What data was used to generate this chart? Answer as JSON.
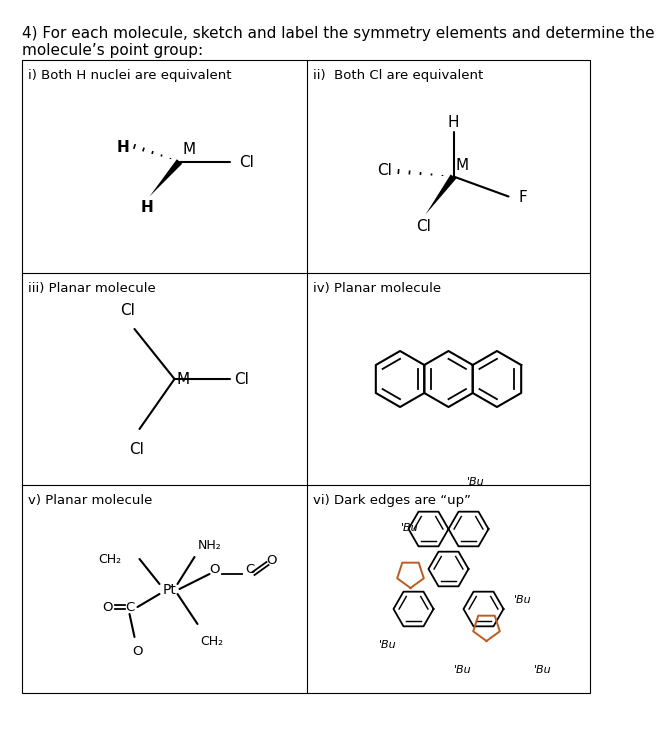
{
  "title_line1": "4) For each molecule, sketch and label the symmetry elements and determine the",
  "title_line2": "molecule’s point group:",
  "cell_labels": [
    "i) Both H nuclei are equivalent",
    "ii)  Both Cl are equivalent",
    "iii) Planar molecule",
    "iv) Planar molecule",
    "v) Planar molecule",
    "vi) Dark edges are “up”"
  ],
  "bg_color": "#ffffff",
  "text_color": "#000000",
  "grid_color": "#000000",
  "font_size_title": 11,
  "font_size_cell": 9.5,
  "font_size_mol": 10
}
